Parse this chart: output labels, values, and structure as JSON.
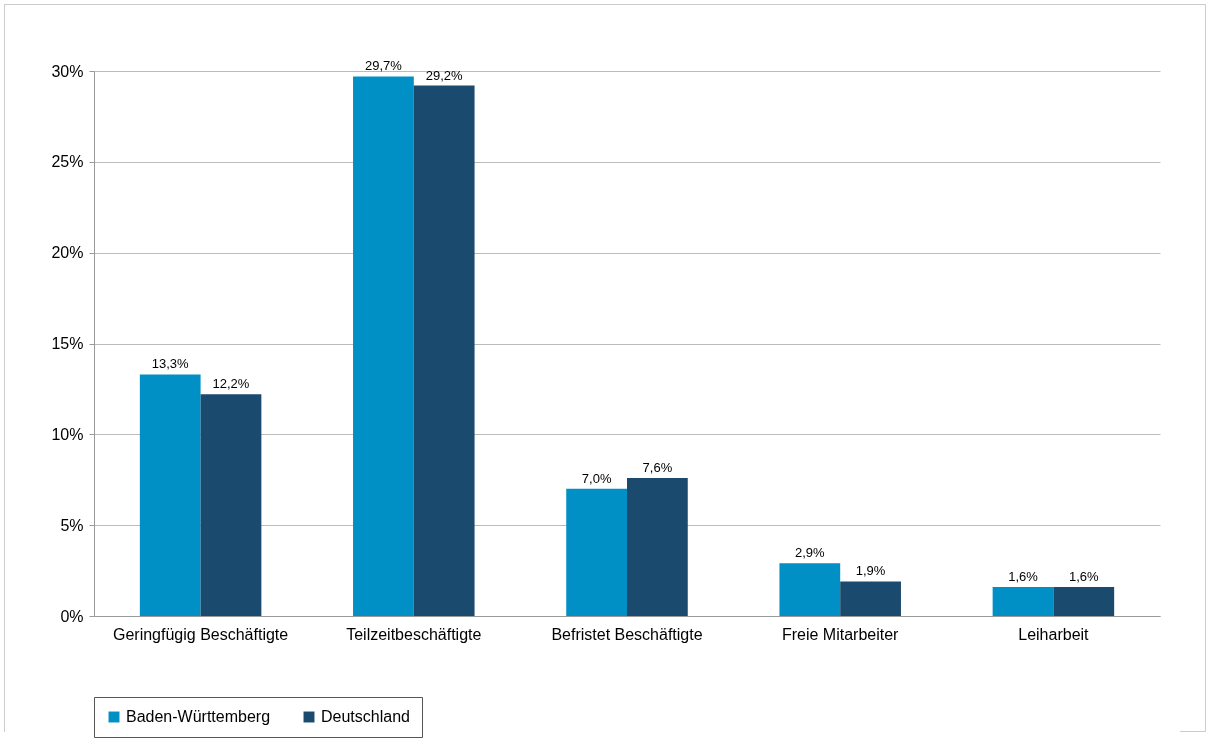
{
  "chart_data": {
    "type": "bar",
    "categories": [
      "Geringfügig Beschäftigte",
      "Teilzeitbeschäftigte",
      "Befristet Beschäftigte",
      "Freie Mitarbeiter",
      "Leiharbeit"
    ],
    "series": [
      {
        "name": "Baden-Württemberg",
        "color": "#0090c6",
        "values": [
          13.3,
          29.7,
          7.0,
          2.9,
          1.6
        ],
        "value_labels": [
          "13,3%",
          "29,7%",
          "7,0%",
          "2,9%",
          "1,6%"
        ]
      },
      {
        "name": "Deutschland",
        "color": "#1a4a6e",
        "values": [
          12.2,
          29.2,
          7.6,
          1.9,
          1.6
        ],
        "value_labels": [
          "12,2%",
          "29,2%",
          "7,6%",
          "1,9%",
          "1,6%"
        ]
      }
    ],
    "ylim": [
      0,
      30
    ],
    "yticks": [
      {
        "value": 0,
        "label": "0%"
      },
      {
        "value": 5,
        "label": "5%"
      },
      {
        "value": 10,
        "label": "10%"
      },
      {
        "value": 15,
        "label": "15%"
      },
      {
        "value": 20,
        "label": "20%"
      },
      {
        "value": 25,
        "label": "25%"
      },
      {
        "value": 30,
        "label": "30%"
      }
    ],
    "grid": "y",
    "legend": "bottom"
  }
}
